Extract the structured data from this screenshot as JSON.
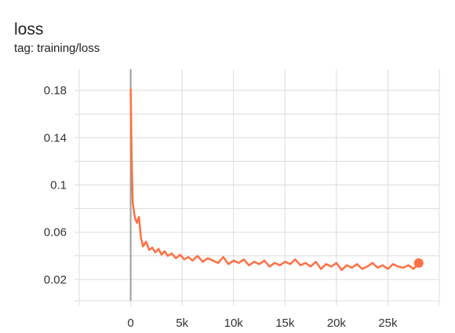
{
  "card": {
    "title": "loss",
    "tag": "tag: training/loss"
  },
  "colors": {
    "series": "#ff7043",
    "grid": "#dcdcdc",
    "zero_axis": "#9e9e9e",
    "tick_text": "#333333"
  },
  "chart_data": {
    "type": "line",
    "title": "loss",
    "subtitle": "tag: training/loss",
    "xlabel": "",
    "ylabel": "",
    "xlim": [
      -5000,
      30000
    ],
    "ylim": [
      0.002,
      0.198
    ],
    "x_ticks": [
      0,
      5000,
      10000,
      15000,
      20000,
      25000
    ],
    "x_tick_labels": [
      "0",
      "5k",
      "10k",
      "15k",
      "20k",
      "25k"
    ],
    "y_ticks": [
      0.02,
      0.06,
      0.1,
      0.14,
      0.18
    ],
    "y_tick_labels": [
      "0.02",
      "0.06",
      "0.1",
      "0.14",
      "0.18"
    ],
    "grid": true,
    "series": [
      {
        "name": "",
        "x": [
          0,
          100,
          200,
          400,
          600,
          800,
          1000,
          1200,
          1500,
          1800,
          2100,
          2400,
          2700,
          3000,
          3300,
          3600,
          4000,
          4400,
          4800,
          5200,
          5600,
          6000,
          6500,
          7000,
          7500,
          8000,
          8500,
          9000,
          9500,
          10000,
          10500,
          11000,
          11500,
          12000,
          12500,
          13000,
          13500,
          14000,
          14500,
          15000,
          15500,
          16000,
          16500,
          17000,
          17500,
          18000,
          18500,
          19000,
          19500,
          20000,
          20500,
          21000,
          21500,
          22000,
          22500,
          23000,
          23500,
          24000,
          24500,
          25000,
          25500,
          26000,
          26500,
          27000,
          27500,
          28000
        ],
        "values": [
          0.181,
          0.12,
          0.085,
          0.073,
          0.068,
          0.073,
          0.055,
          0.048,
          0.052,
          0.045,
          0.047,
          0.043,
          0.046,
          0.041,
          0.044,
          0.04,
          0.042,
          0.038,
          0.041,
          0.037,
          0.039,
          0.036,
          0.04,
          0.035,
          0.038,
          0.036,
          0.034,
          0.039,
          0.033,
          0.036,
          0.034,
          0.037,
          0.032,
          0.035,
          0.033,
          0.036,
          0.031,
          0.034,
          0.032,
          0.035,
          0.033,
          0.037,
          0.032,
          0.034,
          0.031,
          0.035,
          0.029,
          0.033,
          0.031,
          0.034,
          0.028,
          0.032,
          0.03,
          0.033,
          0.029,
          0.031,
          0.034,
          0.03,
          0.032,
          0.029,
          0.033,
          0.031,
          0.03,
          0.032,
          0.029,
          0.034
        ]
      }
    ]
  }
}
